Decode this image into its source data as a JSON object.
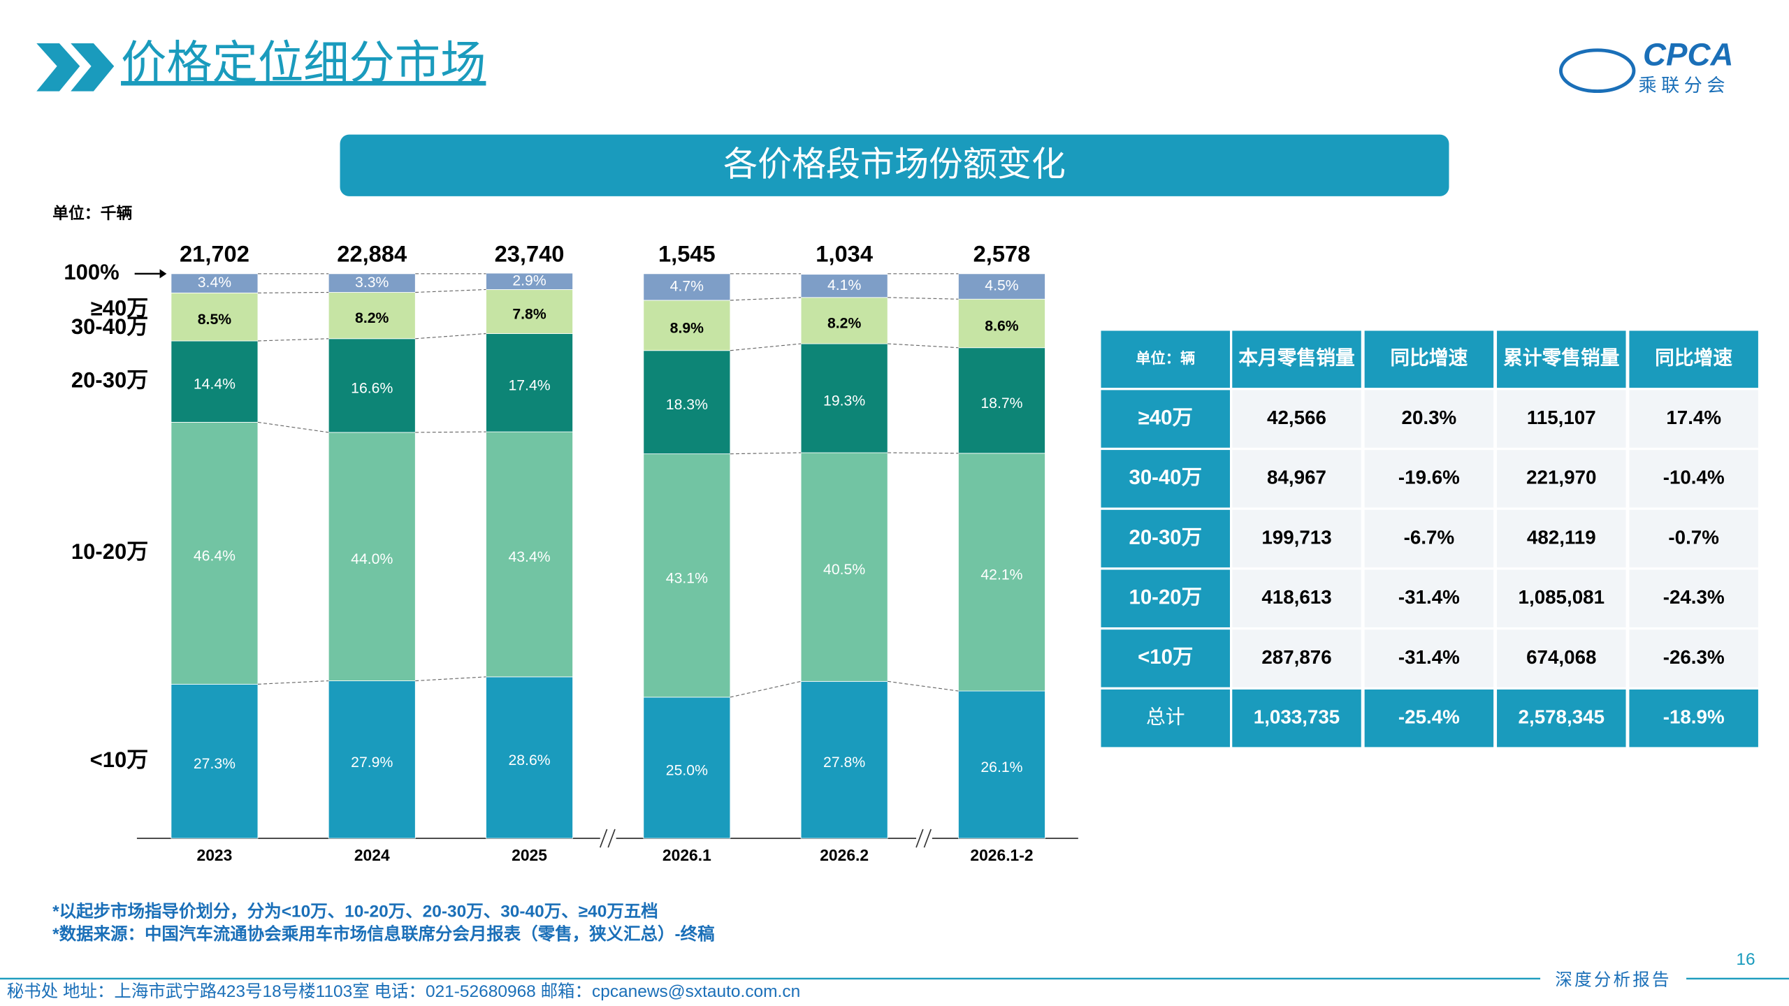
{
  "header": {
    "title": "价格定位细分市场",
    "logo": "CPCA",
    "logo_sub": "乘联分会"
  },
  "chart_data": {
    "type": "bar",
    "stacked": true,
    "title": "各价格段市场份额变化",
    "subtitle": "单位：千辆",
    "categories": [
      "2023",
      "2024",
      "2025",
      "2026.1",
      "2026.2",
      "2026.1-2"
    ],
    "ylim": [
      0,
      100
    ],
    "yticks": [
      {
        "value": 100,
        "label": "100%"
      }
    ],
    "totals": {
      "values": [
        21702,
        22884,
        23740,
        1545,
        1034,
        2578
      ],
      "value_labels": [
        "21,702",
        "22,884",
        "23,740",
        "1,545",
        "1,034",
        "2,578"
      ]
    },
    "series": [
      {
        "name": "<10万",
        "color": "#1a9bbd",
        "values": [
          27.3,
          27.9,
          28.6,
          25.0,
          27.8,
          26.1
        ],
        "value_labels": [
          "27.3%",
          "27.9%",
          "28.6%",
          "25.0%",
          "27.8%",
          "26.1%"
        ]
      },
      {
        "name": "10-20万",
        "color": "#72c4a3",
        "values": [
          46.4,
          44.0,
          43.4,
          43.1,
          40.5,
          42.1
        ],
        "value_labels": [
          "46.4%",
          "44.0%",
          "43.4%",
          "43.1%",
          "40.5%",
          "42.1%"
        ]
      },
      {
        "name": "20-30万",
        "color": "#0d8576",
        "values": [
          14.4,
          16.6,
          17.4,
          18.3,
          19.3,
          18.7
        ],
        "value_labels": [
          "14.4%",
          "16.6%",
          "17.4%",
          "18.3%",
          "19.3%",
          "18.7%"
        ]
      },
      {
        "name": "30-40万",
        "color": "#c6e4a4",
        "values": [
          8.5,
          8.2,
          7.8,
          8.9,
          8.2,
          8.6
        ],
        "value_labels": [
          "8.5%",
          "8.2%",
          "7.8%",
          "8.9%",
          "8.2%",
          "8.6%"
        ]
      },
      {
        "name": "≥40万",
        "color": "#7e9ec7",
        "values": [
          3.4,
          3.3,
          2.9,
          4.7,
          4.1,
          4.5
        ],
        "value_labels": [
          "3.4%",
          "3.3%",
          "2.9%",
          "4.7%",
          "4.1%",
          "4.5%"
        ]
      }
    ]
  },
  "table": {
    "header": [
      "单位：辆",
      "本月零售销量",
      "同比增速",
      "累计零售销量",
      "同比增速"
    ],
    "rows": [
      [
        "≥40万",
        "42,566",
        "20.3%",
        "115,107",
        "17.4%"
      ],
      [
        "30-40万",
        "84,967",
        "-19.6%",
        "221,970",
        "-10.4%"
      ],
      [
        "20-30万",
        "199,713",
        "-6.7%",
        "482,119",
        "-0.7%"
      ],
      [
        "10-20万",
        "418,613",
        "-31.4%",
        "1,085,081",
        "-24.3%"
      ],
      [
        "<10万",
        "287,876",
        "-31.4%",
        "674,068",
        "-26.3%"
      ],
      [
        "总计",
        "1,033,735",
        "-25.4%",
        "2,578,345",
        "-18.9%"
      ]
    ]
  },
  "notes": [
    "*以起步市场指导价划分，分为<10万、10-20万、20-30万、30-40万、≥40万五档",
    "*数据来源：中国汽车流通协会乘用车市场信息联席分会月报表（零售，狭义汇总）-终稿"
  ],
  "page_number": "16",
  "footer": {
    "address": "秘书处   地址：上海市武宁路423号18号楼1103室  电话：021-52680968   邮箱：cpcanews@sxtauto.com.cn",
    "report": "深度分析报告"
  }
}
